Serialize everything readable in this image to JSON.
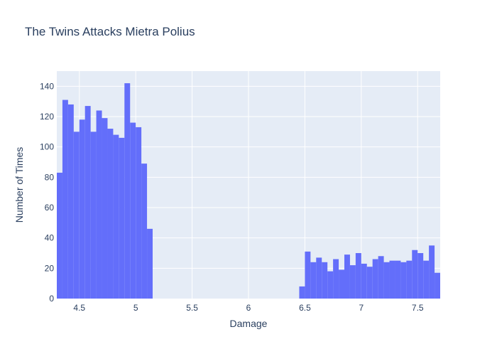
{
  "chart_data": {
    "type": "bar",
    "title": "The Twins Attacks Mietra Polius",
    "xlabel": "Damage",
    "ylabel": "Number of Times",
    "xlim": [
      4.3,
      7.7
    ],
    "ylim": [
      0,
      150
    ],
    "bin_width": 0.05,
    "x_ticks": [
      4.5,
      5,
      5.5,
      6,
      6.5,
      7,
      7.5
    ],
    "x_tick_labels": [
      "4.5",
      "5",
      "5.5",
      "6",
      "6.5",
      "7",
      "7.5"
    ],
    "y_ticks": [
      0,
      20,
      40,
      60,
      80,
      100,
      120,
      140
    ],
    "y_tick_labels": [
      "0",
      "20",
      "40",
      "60",
      "80",
      "100",
      "120",
      "140"
    ],
    "grid": true,
    "legend": "none",
    "bar_color": "#636efa",
    "plot_bg": "#e5ecf6",
    "series": [
      {
        "bin_starts": [
          4.3,
          4.35,
          4.4,
          4.45,
          4.5,
          4.55,
          4.6,
          4.65,
          4.7,
          4.75,
          4.8,
          4.85,
          4.9,
          4.95,
          5.0,
          5.05,
          5.1,
          6.45,
          6.5,
          6.55,
          6.6,
          6.65,
          6.7,
          6.75,
          6.8,
          6.85,
          6.9,
          6.95,
          7.0,
          7.05,
          7.1,
          7.15,
          7.2,
          7.25,
          7.3,
          7.35,
          7.4,
          7.45,
          7.5,
          7.55,
          7.6,
          7.65
        ],
        "values": [
          83,
          131,
          128,
          110,
          118,
          127,
          110,
          124,
          119,
          112,
          108,
          106,
          142,
          116,
          113,
          89,
          46,
          8,
          31,
          24,
          27,
          24,
          18,
          26,
          19,
          29,
          22,
          30,
          23,
          21,
          26,
          28,
          24,
          25,
          25,
          24,
          25,
          32,
          30,
          25,
          35,
          17
        ]
      }
    ]
  }
}
